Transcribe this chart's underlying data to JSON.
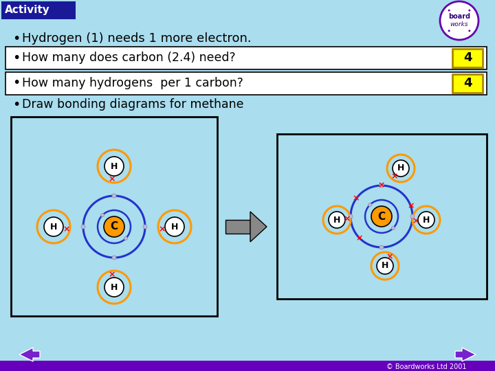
{
  "bg_color": "#aaddee",
  "title_bg": "#1a1a99",
  "title_text": "Activity",
  "title_color": "white",
  "bullet1": "Hydrogen (1) needs 1 more electron.",
  "bullet2": "How many does carbon (2.4) need?",
  "bullet3": "How many hydrogens  per 1 carbon?",
  "bullet4": "Draw bonding diagrams for methane",
  "answer1": "4",
  "answer2": "4",
  "answer_bg": "#ffff00",
  "box_color": "white",
  "text_color": "black",
  "carbon_color": "#ff9900",
  "orbit_color": "#2233cc",
  "electron_dot_color": "#bbbbdd",
  "footer_text": "© Boardworks Ltd 2001",
  "bottom_bar_color": "#6600bb",
  "nav_arrow_color": "#7722cc"
}
